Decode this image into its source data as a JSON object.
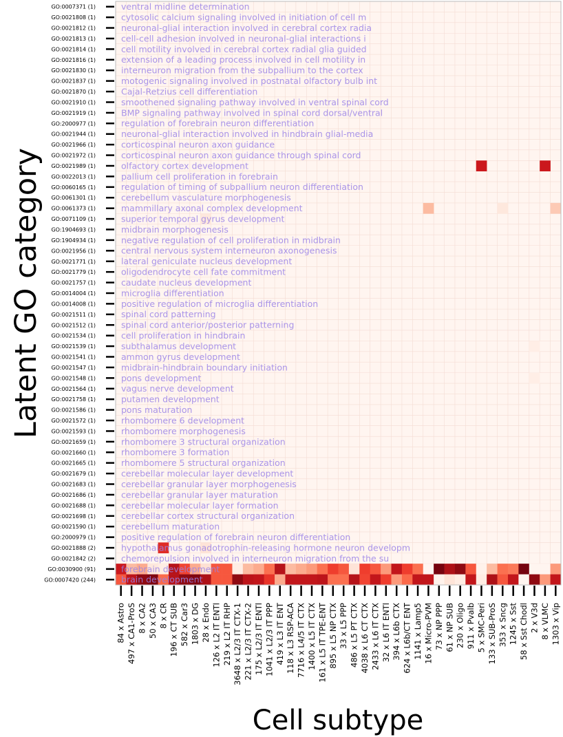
{
  "chart_data": {
    "type": "heatmap",
    "ylabel": "Latent GO category",
    "xlabel": "Cell subtype",
    "colormap": "Reds",
    "background_color": "#fff5f0",
    "description_color": "#9a82e6",
    "rows": [
      {
        "tick": "GO:0007371 (1)",
        "description": "ventral midline determination"
      },
      {
        "tick": "GO:0021808 (1)",
        "description": "cytosolic calcium signaling involved in initiation of cell m"
      },
      {
        "tick": "GO:0021812 (1)",
        "description": "neuronal-glial interaction involved in cerebral cortex radia"
      },
      {
        "tick": "GO:0021813 (1)",
        "description": "cell-cell adhesion involved in neuronal-glial interactions i"
      },
      {
        "tick": "GO:0021814 (1)",
        "description": "cell motility involved in cerebral cortex radial glia guided"
      },
      {
        "tick": "GO:0021816 (1)",
        "description": "extension of a leading process involved in cell motility in"
      },
      {
        "tick": "GO:0021830 (1)",
        "description": "interneuron migration from the subpallium to the cortex"
      },
      {
        "tick": "GO:0021837 (1)",
        "description": "motogenic signaling involved in postnatal olfactory bulb int"
      },
      {
        "tick": "GO:0021870 (1)",
        "description": "Cajal-Retzius cell differentiation"
      },
      {
        "tick": "GO:0021910 (1)",
        "description": "smoothened signaling pathway involved in ventral spinal cord"
      },
      {
        "tick": "GO:0021919 (1)",
        "description": "BMP signaling pathway involved in spinal cord dorsal/ventral"
      },
      {
        "tick": "GO:2000977 (1)",
        "description": "regulation of forebrain neuron differentiation"
      },
      {
        "tick": "GO:0021944 (1)",
        "description": "neuronal-glial interaction involved in hindbrain glial-media"
      },
      {
        "tick": "GO:0021966 (1)",
        "description": "corticospinal neuron axon guidance"
      },
      {
        "tick": "GO:0021972 (1)",
        "description": "corticospinal neuron axon guidance through spinal cord"
      },
      {
        "tick": "GO:0021989 (1)",
        "description": "olfactory cortex development"
      },
      {
        "tick": "GO:0022013 (1)",
        "description": "pallium cell proliferation in forebrain"
      },
      {
        "tick": "GO:0060165 (1)",
        "description": "regulation of timing of subpallium neuron differentiation"
      },
      {
        "tick": "GO:0061301 (1)",
        "description": "cerebellum vasculature morphogenesis"
      },
      {
        "tick": "GO:0061373 (1)",
        "description": "mammillary axonal complex development"
      },
      {
        "tick": "GO:0071109 (1)",
        "description": "superior temporal gyrus development"
      },
      {
        "tick": "GO:1904693 (1)",
        "description": "midbrain morphogenesis"
      },
      {
        "tick": "GO:1904934 (1)",
        "description": "negative regulation of cell proliferation in midbrain"
      },
      {
        "tick": "GO:0021956 (1)",
        "description": "central nervous system interneuron axonogenesis"
      },
      {
        "tick": "GO:0021771 (1)",
        "description": "lateral geniculate nucleus development"
      },
      {
        "tick": "GO:0021779 (1)",
        "description": "oligodendrocyte cell fate commitment"
      },
      {
        "tick": "GO:0021757 (1)",
        "description": "caudate nucleus development"
      },
      {
        "tick": "GO:0014004 (1)",
        "description": "microglia differentiation"
      },
      {
        "tick": "GO:0014008 (1)",
        "description": "positive regulation of microglia differentiation"
      },
      {
        "tick": "GO:0021511 (1)",
        "description": "spinal cord patterning"
      },
      {
        "tick": "GO:0021512 (1)",
        "description": "spinal cord anterior/posterior patterning"
      },
      {
        "tick": "GO:0021534 (1)",
        "description": "cell proliferation in hindbrain"
      },
      {
        "tick": "GO:0021539 (1)",
        "description": "subthalamus development"
      },
      {
        "tick": "GO:0021541 (1)",
        "description": "ammon gyrus development"
      },
      {
        "tick": "GO:0021547 (1)",
        "description": "midbrain-hindbrain boundary initiation"
      },
      {
        "tick": "GO:0021548 (1)",
        "description": "pons development"
      },
      {
        "tick": "GO:0021564 (1)",
        "description": "vagus nerve development"
      },
      {
        "tick": "GO:0021758 (1)",
        "description": "putamen development"
      },
      {
        "tick": "GO:0021586 (1)",
        "description": "pons maturation"
      },
      {
        "tick": "GO:0021572 (1)",
        "description": "rhombomere 6 development"
      },
      {
        "tick": "GO:0021593 (1)",
        "description": "rhombomere morphogenesis"
      },
      {
        "tick": "GO:0021659 (1)",
        "description": "rhombomere 3 structural organization"
      },
      {
        "tick": "GO:0021660 (1)",
        "description": "rhombomere 3 formation"
      },
      {
        "tick": "GO:0021665 (1)",
        "description": "rhombomere 5 structural organization"
      },
      {
        "tick": "GO:0021679 (1)",
        "description": "cerebellar molecular layer development"
      },
      {
        "tick": "GO:0021683 (1)",
        "description": "cerebellar granular layer morphogenesis"
      },
      {
        "tick": "GO:0021686 (1)",
        "description": "cerebellar granular layer maturation"
      },
      {
        "tick": "GO:0021688 (1)",
        "description": "cerebellar molecular layer formation"
      },
      {
        "tick": "GO:0021698 (1)",
        "description": "cerebellar cortex structural organization"
      },
      {
        "tick": "GO:0021590 (1)",
        "description": "cerebellum maturation"
      },
      {
        "tick": "GO:2000979 (1)",
        "description": "positive regulation of forebrain neuron differentiation"
      },
      {
        "tick": "GO:0021888 (2)",
        "description": "hypothalamus gonadotrophin-releasing hormone neuron developm"
      },
      {
        "tick": "GO:0021842 (2)",
        "description": "chemorepulsion involved in interneuron migration from the su"
      },
      {
        "tick": "GO:0030900 (91)",
        "description": "forebrain development"
      },
      {
        "tick": "GO:0007420 (244)",
        "description": "brain development"
      }
    ],
    "columns": [
      "84 x Astro",
      "497 x CA1-ProS",
      "8 x CA2",
      "50 x CA3",
      "8 x CR",
      "196 x CT SUB",
      "582 x Car3",
      "1803 x DG",
      "28 x Endo",
      "126 x L2 IT ENTl",
      "219 x L2 IT RHP",
      "3648 x L2/3 IT CTX-1",
      "221 x L2/3 IT CTX-2",
      "175 x L2/3 IT ENTl",
      "1041 x L2/3 IT PPP",
      "419 x L3 IT ENT",
      "118 x L3 RSP-ACA",
      "7716 x L4/5 IT CTX",
      "1400 x L5 IT CTX",
      "161 x L5 IT TPE-ENT",
      "895 x L5 NP CTX",
      "33 x L5 PPP",
      "486 x L5 PT CTX",
      "4038 x L6 CT CTX",
      "2433 x L6 IT CTX",
      "32 x L6 IT ENTl",
      "394 x L6b CTX",
      "624 x L6b/CT ENT",
      "1141 x Lamp5",
      "16 x Micro-PVM",
      "73 x NP PPP",
      "61 x NP SUB",
      "230 x Oligo",
      "911 x Pvalb",
      "5 x SMC-Peri",
      "133 x SUB-ProS",
      "353 x Sncg",
      "1245 x Sst",
      "58 x Sst Chodl",
      "2 x V3d",
      "8 x VLMC",
      "1303 x Vip"
    ],
    "cells": [
      {
        "row": 15,
        "col": 34,
        "value": 0.75
      },
      {
        "row": 15,
        "col": 40,
        "value": 0.75
      },
      {
        "row": 19,
        "col": 29,
        "value": 0.25
      },
      {
        "row": 19,
        "col": 36,
        "value": 0.08
      },
      {
        "row": 19,
        "col": 41,
        "value": 0.2
      },
      {
        "row": 20,
        "col": 8,
        "value": 0.08
      },
      {
        "row": 32,
        "col": 39,
        "value": 0.04
      },
      {
        "row": 35,
        "col": 39,
        "value": 0.04
      },
      {
        "row": 51,
        "col": 4,
        "value": 0.68
      },
      {
        "row": 51,
        "col": 8,
        "value": 0.1
      },
      {
        "row": 53,
        "col": 0,
        "value": 0.75
      },
      {
        "row": 53,
        "col": 1,
        "value": 0.25
      },
      {
        "row": 53,
        "col": 2,
        "value": 0.3
      },
      {
        "row": 53,
        "col": 3,
        "value": 0.08
      },
      {
        "row": 53,
        "col": 4,
        "value": 0.05
      },
      {
        "row": 53,
        "col": 5,
        "value": 0.82
      },
      {
        "row": 53,
        "col": 6,
        "value": 0.6
      },
      {
        "row": 53,
        "col": 7,
        "value": 0.3
      },
      {
        "row": 53,
        "col": 8,
        "value": 0.12
      },
      {
        "row": 53,
        "col": 9,
        "value": 0.55
      },
      {
        "row": 53,
        "col": 10,
        "value": 0.55
      },
      {
        "row": 53,
        "col": 11,
        "value": 0.05
      },
      {
        "row": 53,
        "col": 12,
        "value": 0.25
      },
      {
        "row": 53,
        "col": 13,
        "value": 0.3
      },
      {
        "row": 53,
        "col": 14,
        "value": 0.48
      },
      {
        "row": 53,
        "col": 15,
        "value": 0.82
      },
      {
        "row": 53,
        "col": 16,
        "value": 0.25
      },
      {
        "row": 53,
        "col": 17,
        "value": 0.3
      },
      {
        "row": 53,
        "col": 18,
        "value": 0.35
      },
      {
        "row": 53,
        "col": 19,
        "value": 0.48
      },
      {
        "row": 53,
        "col": 20,
        "value": 0.62
      },
      {
        "row": 53,
        "col": 21,
        "value": 0.55
      },
      {
        "row": 53,
        "col": 22,
        "value": 0.1
      },
      {
        "row": 53,
        "col": 23,
        "value": 0.62
      },
      {
        "row": 53,
        "col": 24,
        "value": 0.55
      },
      {
        "row": 53,
        "col": 25,
        "value": 0.35
      },
      {
        "row": 53,
        "col": 26,
        "value": 0.78
      },
      {
        "row": 53,
        "col": 27,
        "value": 0.62
      },
      {
        "row": 53,
        "col": 28,
        "value": 0.48
      },
      {
        "row": 53,
        "col": 29,
        "value": 0.0
      },
      {
        "row": 53,
        "col": 30,
        "value": 0.97
      },
      {
        "row": 53,
        "col": 31,
        "value": 0.85
      },
      {
        "row": 53,
        "col": 32,
        "value": 0.92
      },
      {
        "row": 53,
        "col": 33,
        "value": 0.55
      },
      {
        "row": 53,
        "col": 34,
        "value": 0.02
      },
      {
        "row": 53,
        "col": 35,
        "value": 0.25
      },
      {
        "row": 53,
        "col": 36,
        "value": 0.48
      },
      {
        "row": 53,
        "col": 37,
        "value": 0.45
      },
      {
        "row": 53,
        "col": 38,
        "value": 0.97
      },
      {
        "row": 53,
        "col": 39,
        "value": 0.0
      },
      {
        "row": 53,
        "col": 40,
        "value": 0.0
      },
      {
        "row": 53,
        "col": 41,
        "value": 0.35
      },
      {
        "row": 54,
        "col": 0,
        "value": 0.55
      },
      {
        "row": 54,
        "col": 1,
        "value": 0.8
      },
      {
        "row": 54,
        "col": 2,
        "value": 0.92
      },
      {
        "row": 54,
        "col": 3,
        "value": 0.95
      },
      {
        "row": 54,
        "col": 4,
        "value": 0.5
      },
      {
        "row": 54,
        "col": 5,
        "value": 0.82
      },
      {
        "row": 54,
        "col": 6,
        "value": 0.92
      },
      {
        "row": 54,
        "col": 7,
        "value": 0.95
      },
      {
        "row": 54,
        "col": 8,
        "value": 0.85
      },
      {
        "row": 54,
        "col": 9,
        "value": 0.55
      },
      {
        "row": 54,
        "col": 10,
        "value": 0.55
      },
      {
        "row": 54,
        "col": 11,
        "value": 0.92
      },
      {
        "row": 54,
        "col": 12,
        "value": 0.8
      },
      {
        "row": 54,
        "col": 13,
        "value": 0.78
      },
      {
        "row": 54,
        "col": 14,
        "value": 0.65
      },
      {
        "row": 54,
        "col": 15,
        "value": 0.3
      },
      {
        "row": 54,
        "col": 16,
        "value": 0.78
      },
      {
        "row": 54,
        "col": 17,
        "value": 0.78
      },
      {
        "row": 54,
        "col": 18,
        "value": 0.78
      },
      {
        "row": 54,
        "col": 19,
        "value": 0.8
      },
      {
        "row": 54,
        "col": 20,
        "value": 0.48
      },
      {
        "row": 54,
        "col": 21,
        "value": 0.48
      },
      {
        "row": 54,
        "col": 22,
        "value": 0.82
      },
      {
        "row": 54,
        "col": 23,
        "value": 0.6
      },
      {
        "row": 54,
        "col": 24,
        "value": 0.78
      },
      {
        "row": 54,
        "col": 25,
        "value": 0.62
      },
      {
        "row": 54,
        "col": 26,
        "value": 0.35
      },
      {
        "row": 54,
        "col": 27,
        "value": 0.5
      },
      {
        "row": 54,
        "col": 28,
        "value": 0.78
      },
      {
        "row": 54,
        "col": 29,
        "value": 0.78
      },
      {
        "row": 54,
        "col": 30,
        "value": 0.02
      },
      {
        "row": 54,
        "col": 31,
        "value": 0.1
      },
      {
        "row": 54,
        "col": 32,
        "value": 0.05
      },
      {
        "row": 54,
        "col": 33,
        "value": 0.78
      },
      {
        "row": 54,
        "col": 34,
        "value": 0.05
      },
      {
        "row": 54,
        "col": 35,
        "value": 0.85
      },
      {
        "row": 54,
        "col": 36,
        "value": 0.55
      },
      {
        "row": 54,
        "col": 37,
        "value": 0.78
      },
      {
        "row": 54,
        "col": 38,
        "value": 0.0
      },
      {
        "row": 54,
        "col": 39,
        "value": 0.92
      },
      {
        "row": 54,
        "col": 40,
        "value": 0.35
      },
      {
        "row": 54,
        "col": 41,
        "value": 0.78
      }
    ]
  }
}
